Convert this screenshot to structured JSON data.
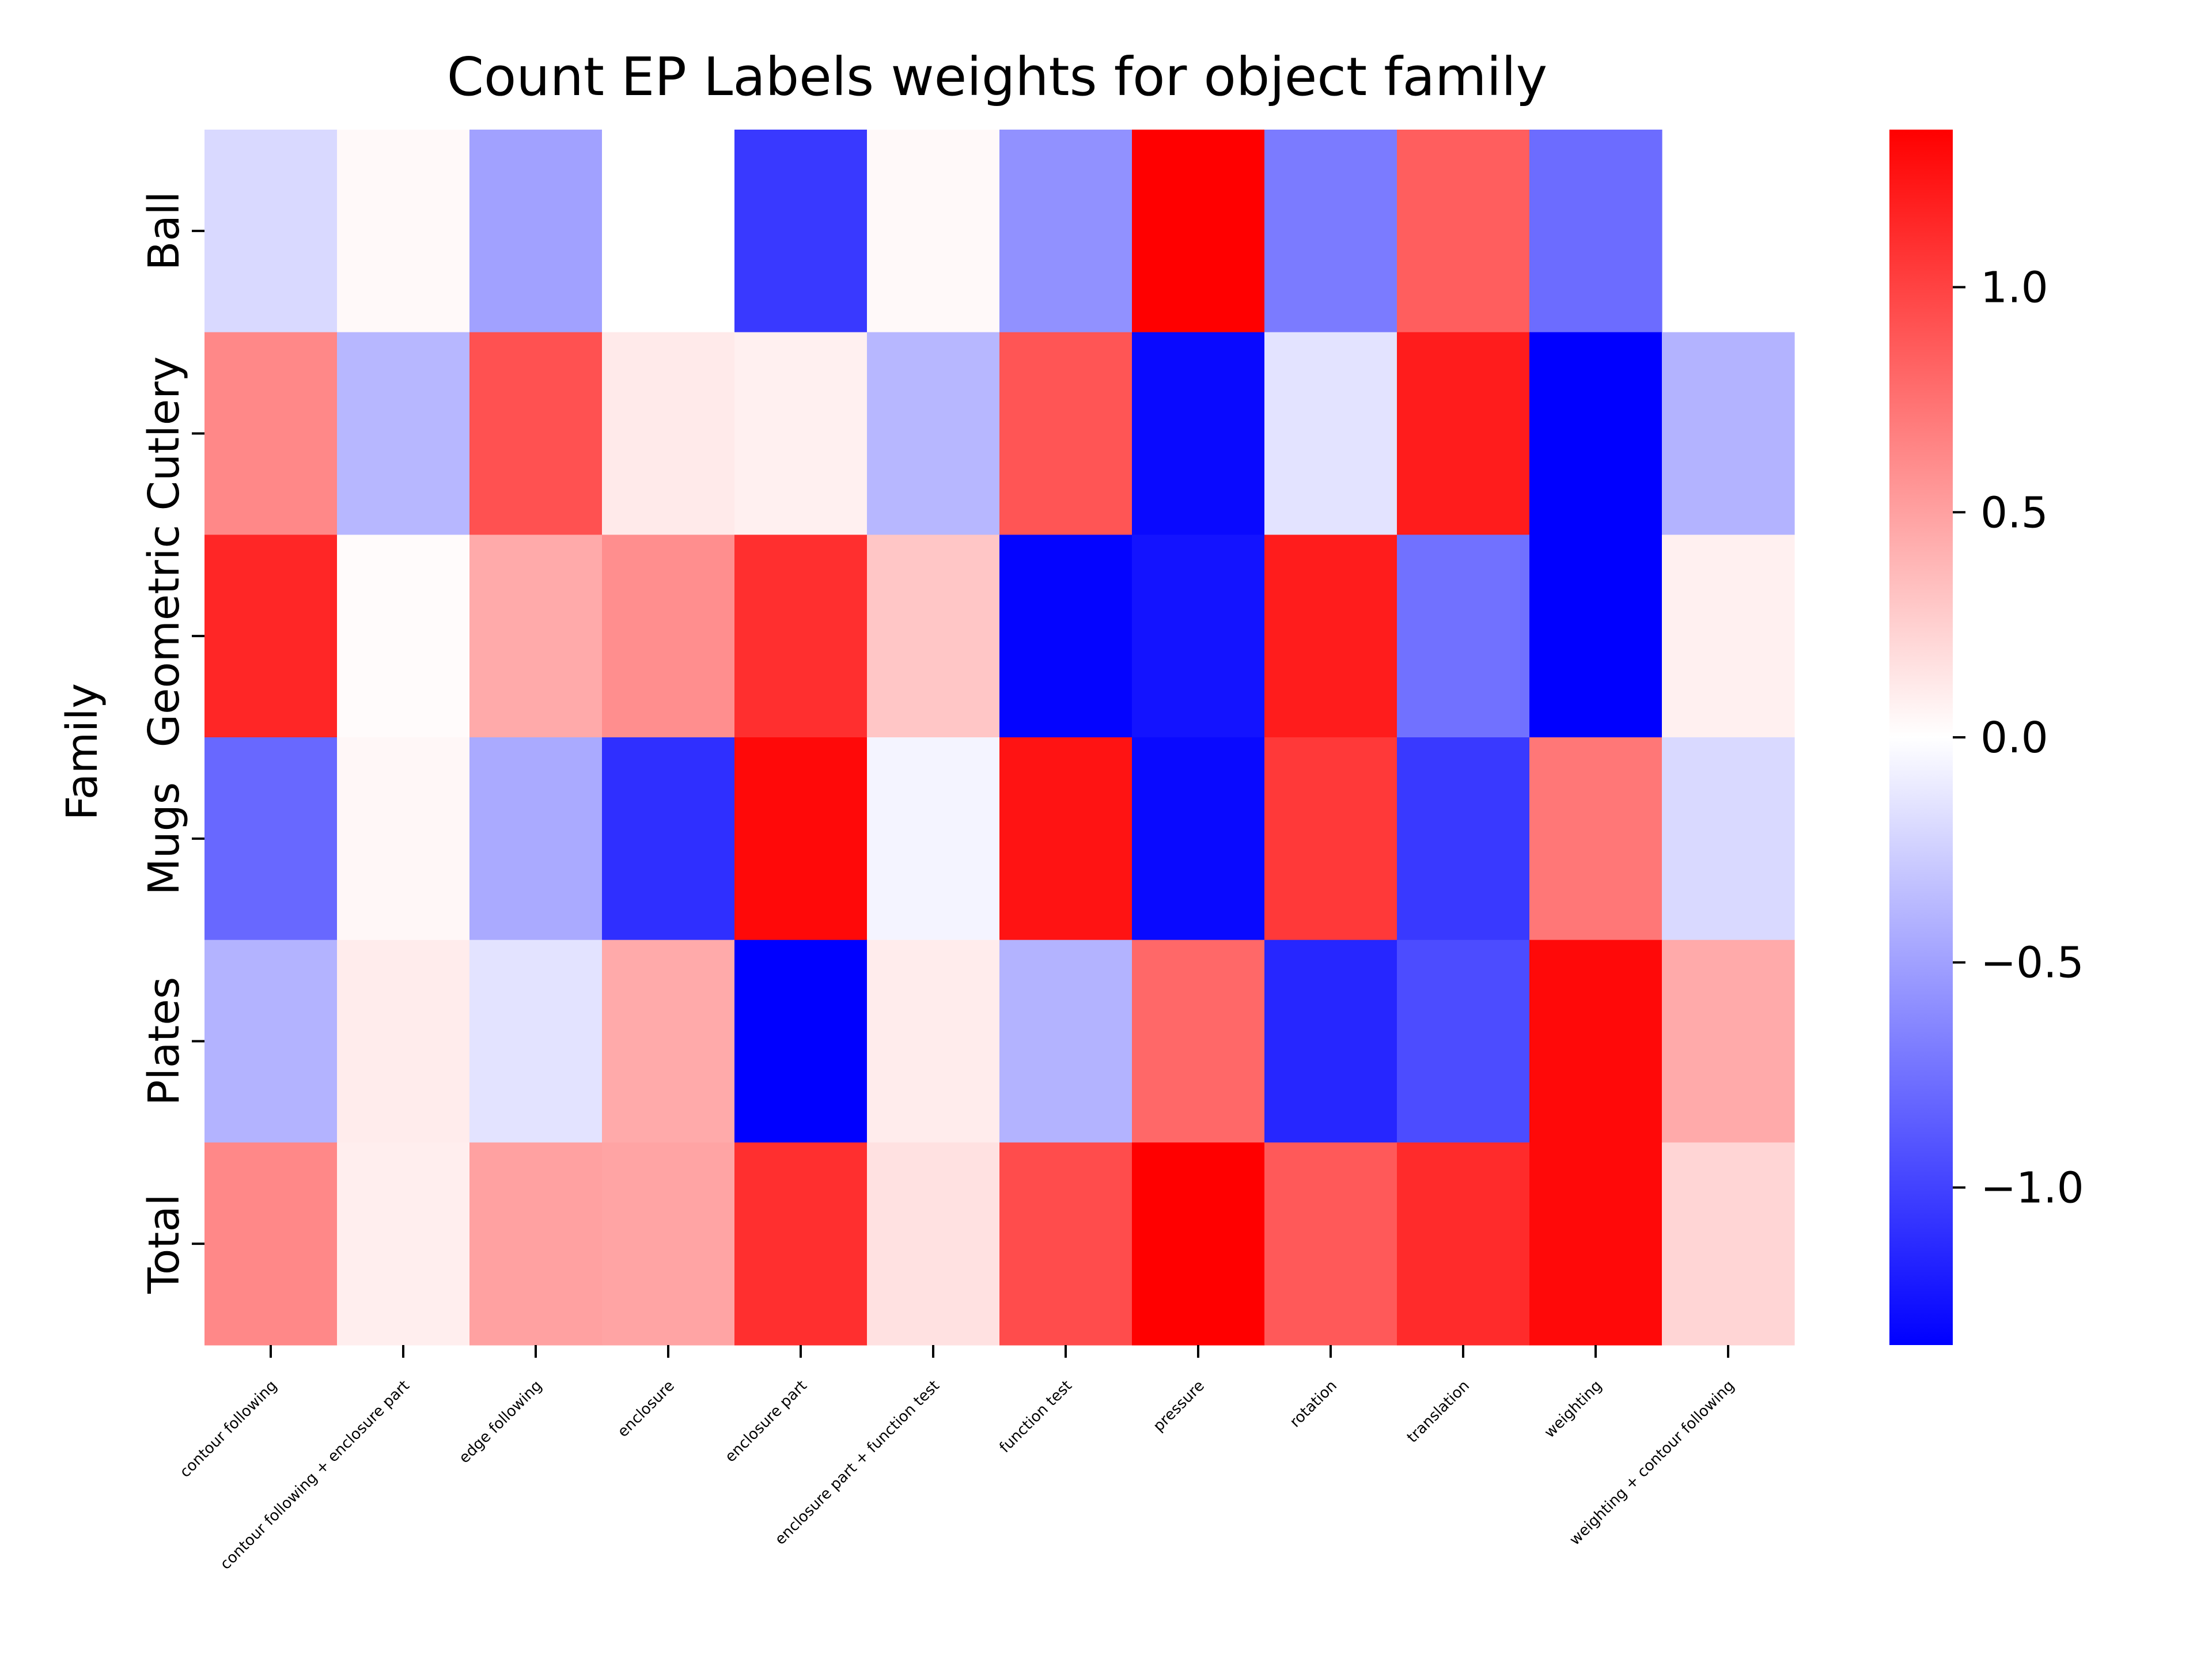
{
  "chart_data": {
    "type": "heatmap",
    "title": "Count EP Labels weights for object family",
    "ylabel": "Family",
    "xlabel": "",
    "rows": [
      "Ball",
      "Cutlery",
      "Geometric",
      "Mugs",
      "Plates",
      "Total"
    ],
    "columns": [
      "contour following",
      "contour following + enclosure part",
      "edge following",
      "enclosure",
      "enclosure part",
      "enclosure part + function test",
      "function test",
      "pressure",
      "rotation",
      "translation",
      "weighting",
      "weighting + contour following"
    ],
    "values": [
      [
        -0.2,
        0.03,
        -0.5,
        0.0,
        -1.05,
        0.03,
        -0.58,
        1.35,
        -0.7,
        0.85,
        -0.78,
        null
      ],
      [
        0.63,
        -0.38,
        0.92,
        0.11,
        0.08,
        -0.38,
        0.9,
        -1.3,
        -0.15,
        1.2,
        -1.35,
        -0.4
      ],
      [
        1.15,
        0.02,
        0.45,
        0.6,
        1.1,
        0.3,
        -1.33,
        -1.25,
        1.2,
        -0.75,
        -1.35,
        0.08
      ],
      [
        -0.8,
        0.04,
        -0.45,
        -1.1,
        1.3,
        -0.06,
        1.25,
        -1.3,
        1.05,
        -1.05,
        0.72,
        -0.2
      ],
      [
        -0.4,
        0.1,
        -0.15,
        0.45,
        -1.35,
        0.1,
        -0.4,
        0.8,
        -1.15,
        -0.95,
        1.3,
        0.45
      ],
      [
        0.63,
        0.09,
        0.5,
        0.48,
        1.1,
        0.16,
        0.95,
        1.35,
        0.88,
        1.12,
        1.3,
        0.22
      ]
    ],
    "colorbar": {
      "min": -1.35,
      "max": 1.35,
      "ticks": [
        1.0,
        0.5,
        0.0,
        -0.5,
        -1.0
      ],
      "tick_labels": [
        "1.0",
        "0.5",
        "0.0",
        "−0.5",
        "−1.0"
      ],
      "colormap": "bwr",
      "low_color": "#0000ff",
      "mid_color": "#ffffff",
      "high_color": "#ff0000"
    }
  }
}
